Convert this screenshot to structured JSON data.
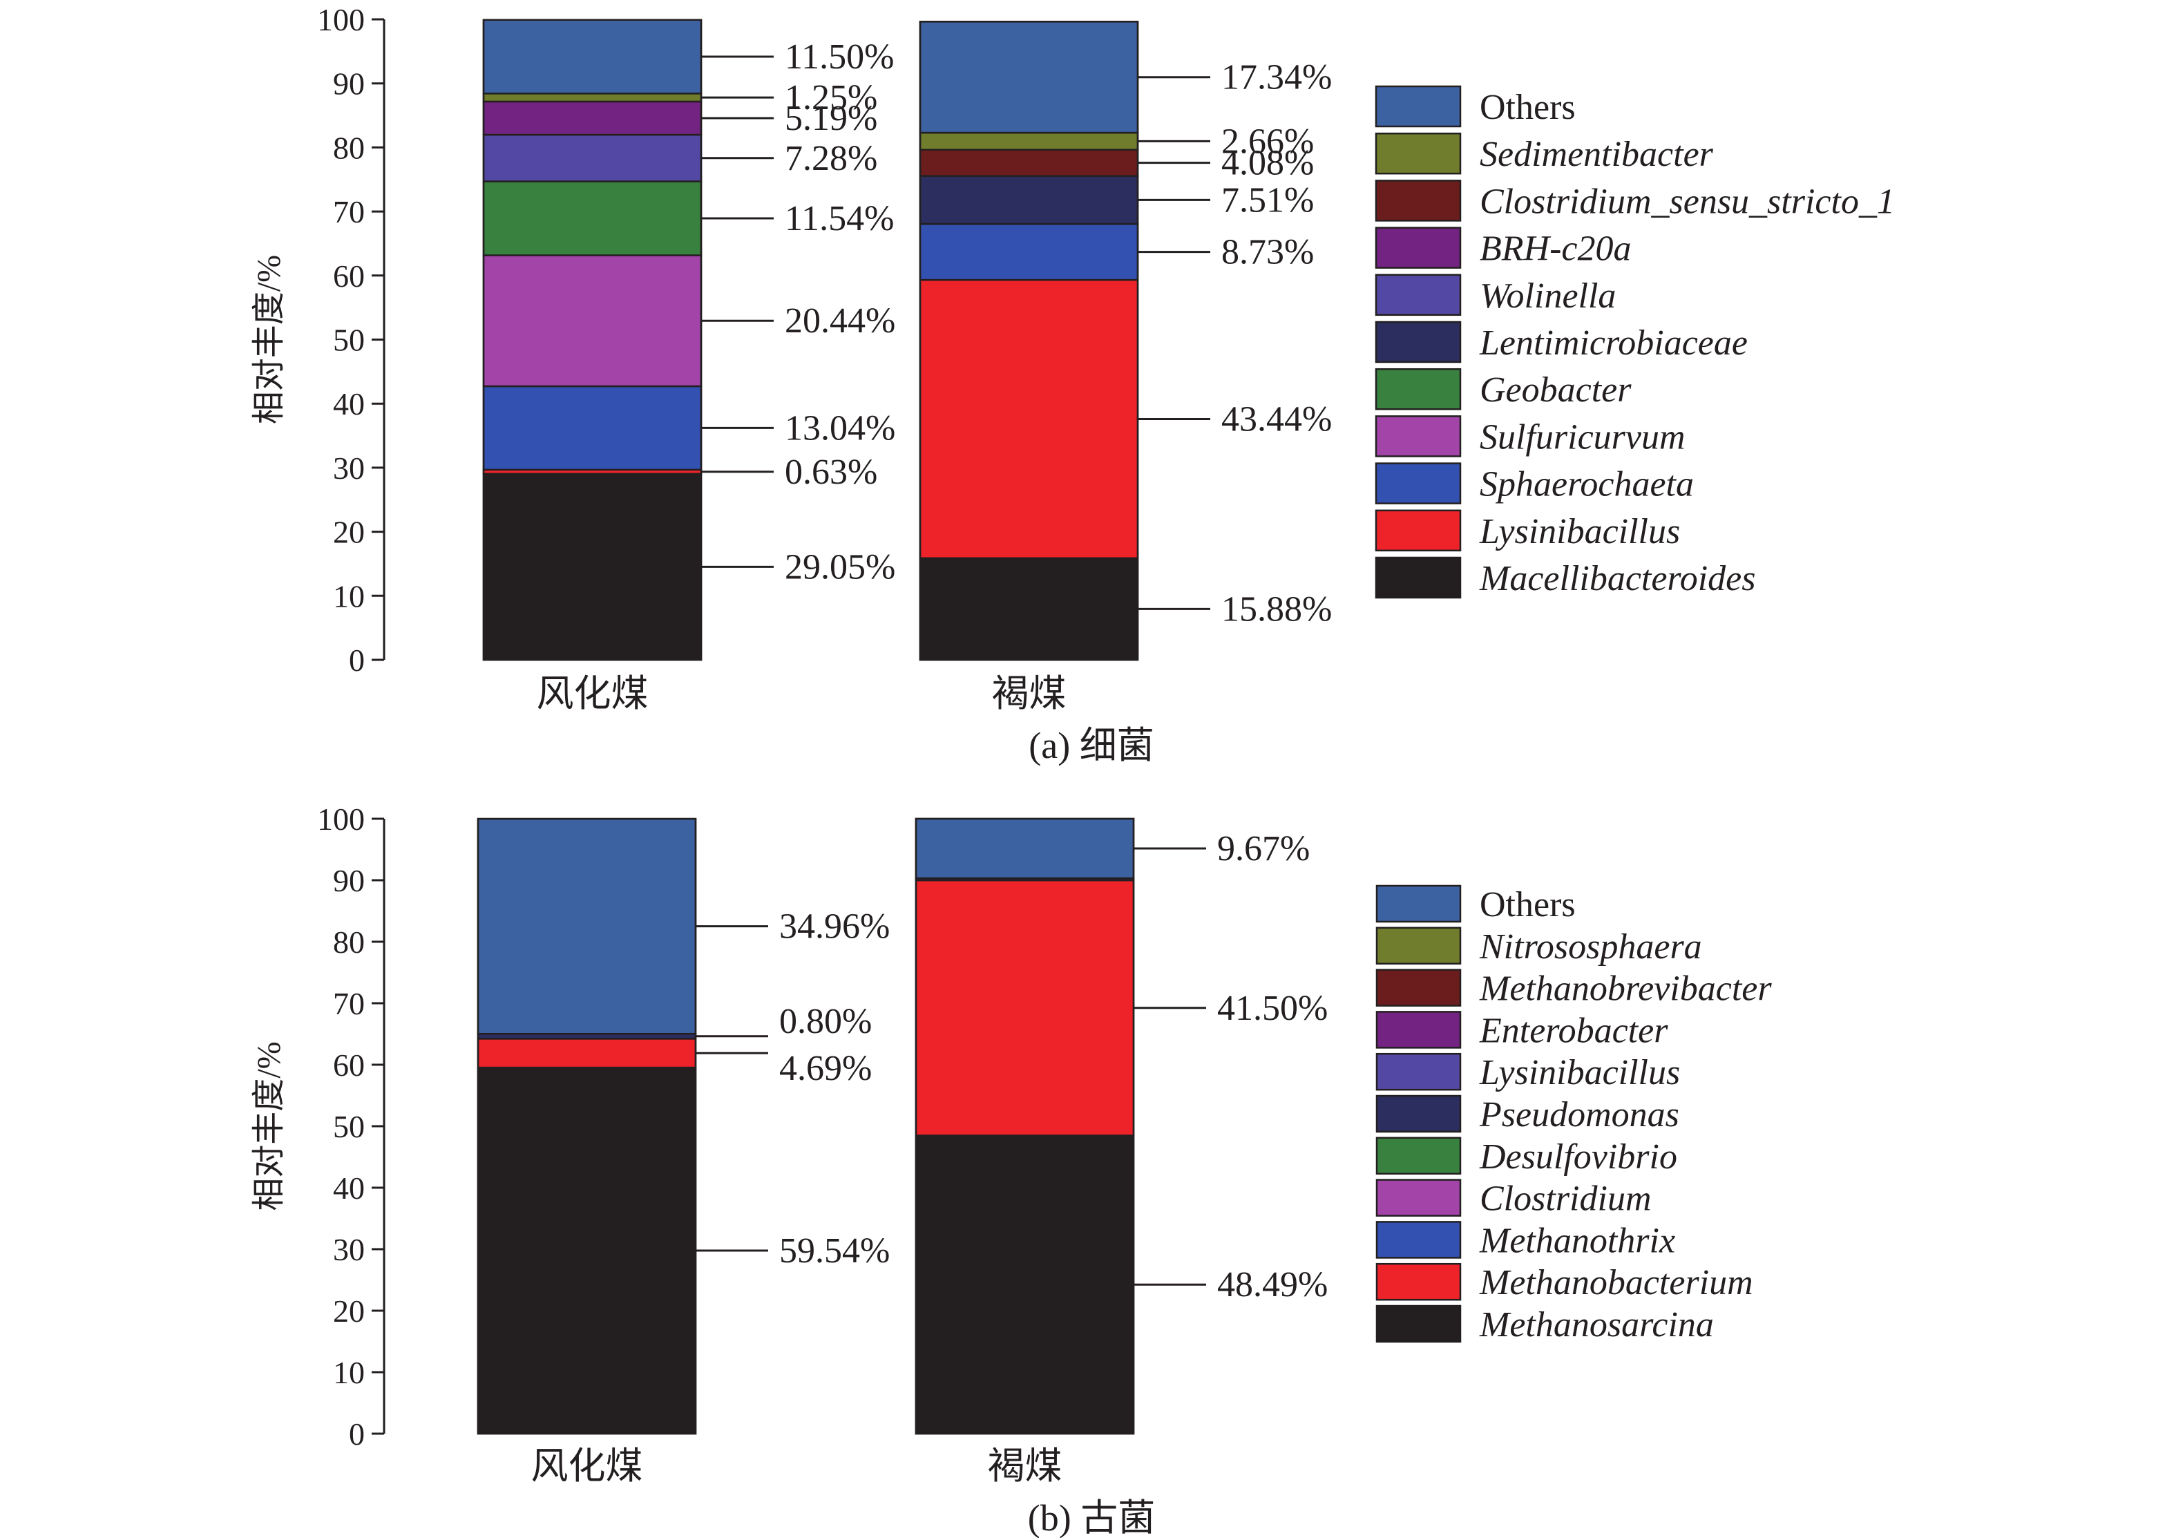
{
  "colors": {
    "Others": "#3d62a2",
    "Sedimentibacter": "#6f7d2c",
    "Clostridium_sensu_stricto_1": "#6b1d1e",
    "BRH-c20a": "#732381",
    "Wolinella": "#5348a3",
    "Lentimicrobiaceae": "#2b2e5e",
    "Geobacter": "#39813f",
    "Sulfuricurvum": "#a244a8",
    "Sphaerochaeta": "#3251b0",
    "Lysinibacillus": "#ee232a",
    "Macellibacteroides": "#231f20",
    "Nitrososphaera": "#6f7d2c",
    "Methanobrevibacter": "#6b1d1e",
    "Enterobacter": "#732381",
    "Lysinibacillus_b": "#5348a3",
    "Pseudomonas": "#2b2e5e",
    "Desulfovibrio": "#39813f",
    "Clostridium": "#a244a8",
    "Methanothrix": "#3251b0",
    "Methanobacterium": "#ee232a",
    "Methanosarcina": "#231f20"
  },
  "chart_data": [
    {
      "type": "bar",
      "stacked": true,
      "caption": "(a) 细菌",
      "ylabel": "相对丰度/%",
      "ylim": [
        0,
        100
      ],
      "yticks": [
        "0",
        "10",
        "20",
        "30",
        "40",
        "50",
        "60",
        "70",
        "80",
        "90",
        "100"
      ],
      "categories": [
        "风化煤",
        "褐煤"
      ],
      "legend": [
        {
          "name": "Others",
          "italic": false,
          "color_key": "Others"
        },
        {
          "name": "Sedimentibacter",
          "italic": true,
          "color_key": "Sedimentibacter"
        },
        {
          "name": "Clostridium_sensu_stricto_1",
          "italic": true,
          "color_key": "Clostridium_sensu_stricto_1"
        },
        {
          "name": "BRH-c20a",
          "italic": true,
          "color_key": "BRH-c20a"
        },
        {
          "name": "Wolinella",
          "italic": true,
          "color_key": "Wolinella"
        },
        {
          "name": "Lentimicrobiaceae",
          "italic": true,
          "color_key": "Lentimicrobiaceae"
        },
        {
          "name": "Geobacter",
          "italic": true,
          "color_key": "Geobacter"
        },
        {
          "name": "Sulfuricurvum",
          "italic": true,
          "color_key": "Sulfuricurvum"
        },
        {
          "name": "Sphaerochaeta",
          "italic": true,
          "color_key": "Sphaerochaeta"
        },
        {
          "name": "Lysinibacillus",
          "italic": true,
          "color_key": "Lysinibacillus"
        },
        {
          "name": "Macellibacteroides",
          "italic": true,
          "color_key": "Macellibacteroides"
        }
      ],
      "bars": [
        {
          "category": "风化煤",
          "segments": [
            {
              "name": "Macellibacteroides",
              "value": 29.05,
              "label": "29.05%"
            },
            {
              "name": "Lysinibacillus",
              "value": 0.63,
              "label": "0.63%"
            },
            {
              "name": "Sphaerochaeta",
              "value": 13.04,
              "label": "13.04%"
            },
            {
              "name": "Sulfuricurvum",
              "value": 20.44,
              "label": "20.44%"
            },
            {
              "name": "Geobacter",
              "value": 11.54,
              "label": "11.54%"
            },
            {
              "name": "Wolinella",
              "value": 7.28,
              "label": "7.28%"
            },
            {
              "name": "BRH-c20a",
              "value": 5.19,
              "label": "5.19%"
            },
            {
              "name": "Sedimentibacter",
              "value": 1.25,
              "label": "1.25%"
            },
            {
              "name": "Others",
              "value": 11.5,
              "label": "11.50%"
            }
          ]
        },
        {
          "category": "褐煤",
          "segments": [
            {
              "name": "Macellibacteroides",
              "value": 15.88,
              "label": "15.88%"
            },
            {
              "name": "Lysinibacillus",
              "value": 43.44,
              "label": "43.44%"
            },
            {
              "name": "Sphaerochaeta",
              "value": 8.73,
              "label": "8.73%"
            },
            {
              "name": "Lentimicrobiaceae",
              "value": 7.51,
              "label": "7.51%"
            },
            {
              "name": "Clostridium_sensu_stricto_1",
              "value": 4.08,
              "label": "4.08%"
            },
            {
              "name": "Sedimentibacter",
              "value": 2.66,
              "label": "2.66%"
            },
            {
              "name": "Others",
              "value": 17.34,
              "label": "17.34%"
            }
          ]
        }
      ]
    },
    {
      "type": "bar",
      "stacked": true,
      "caption": "(b) 古菌",
      "ylabel": "相对丰度/%",
      "ylim": [
        0,
        100
      ],
      "yticks": [
        "0",
        "10",
        "20",
        "30",
        "40",
        "50",
        "60",
        "70",
        "80",
        "90",
        "100"
      ],
      "categories": [
        "风化煤",
        "褐煤"
      ],
      "legend": [
        {
          "name": "Others",
          "italic": false,
          "color_key": "Others"
        },
        {
          "name": "Nitrososphaera",
          "italic": true,
          "color_key": "Nitrososphaera"
        },
        {
          "name": "Methanobrevibacter",
          "italic": true,
          "color_key": "Methanobrevibacter"
        },
        {
          "name": "Enterobacter",
          "italic": true,
          "color_key": "Enterobacter"
        },
        {
          "name": "Lysinibacillus",
          "italic": true,
          "color_key": "Lysinibacillus_b"
        },
        {
          "name": "Pseudomonas",
          "italic": true,
          "color_key": "Pseudomonas"
        },
        {
          "name": "Desulfovibrio",
          "italic": true,
          "color_key": "Desulfovibrio"
        },
        {
          "name": "Clostridium",
          "italic": true,
          "color_key": "Clostridium"
        },
        {
          "name": "Methanothrix",
          "italic": true,
          "color_key": "Methanothrix"
        },
        {
          "name": "Methanobacterium",
          "italic": true,
          "color_key": "Methanobacterium"
        },
        {
          "name": "Methanosarcina",
          "italic": true,
          "color_key": "Methanosarcina"
        }
      ],
      "bars": [
        {
          "category": "风化煤",
          "segments": [
            {
              "name": "Methanosarcina",
              "value": 59.54,
              "label": "59.54%"
            },
            {
              "name": "Methanobacterium",
              "value": 4.69,
              "label": "4.69%"
            },
            {
              "name": "Pseudomonas",
              "value": 0.8,
              "label": "0.80%"
            },
            {
              "name": "Others",
              "value": 34.96,
              "label": "34.96%"
            }
          ]
        },
        {
          "category": "褐煤",
          "segments": [
            {
              "name": "Methanosarcina",
              "value": 48.49,
              "label": "48.49%"
            },
            {
              "name": "Methanobacterium",
              "value": 41.5,
              "label": "41.50%"
            },
            {
              "name": "Pseudomonas",
              "value": 0.34,
              "label": ""
            },
            {
              "name": "Others",
              "value": 9.67,
              "label": "9.67%"
            }
          ]
        }
      ]
    }
  ]
}
